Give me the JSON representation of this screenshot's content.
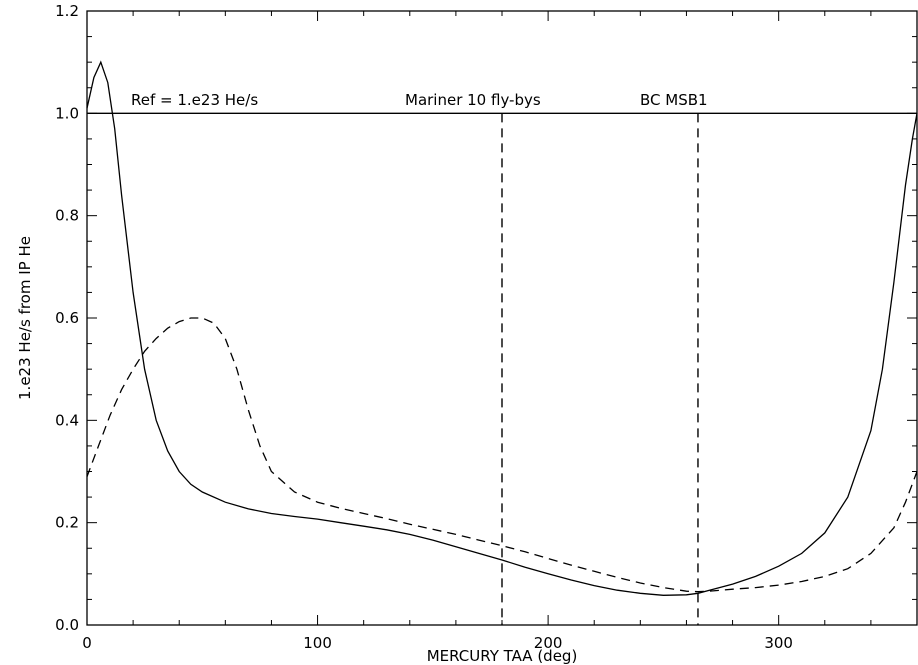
{
  "chart_data": {
    "type": "line",
    "title": "",
    "xlabel": "MERCURY TAA (deg)",
    "ylabel": "1.e23 He/s from IP He",
    "xlim": [
      0,
      360
    ],
    "ylim": [
      0,
      1.2
    ],
    "x_ticks": [
      0,
      100,
      200,
      300
    ],
    "x_tick_labels": [
      "0",
      "100",
      "200",
      "300"
    ],
    "y_ticks": [
      0.0,
      0.2,
      0.4,
      0.6,
      0.8,
      1.0,
      1.2
    ],
    "y_tick_labels": [
      "0.0",
      "0.2",
      "0.4",
      "0.6",
      "0.8",
      "1.0",
      "1.2"
    ],
    "grid": false,
    "annotations": {
      "ref": "Ref = 1.e23 He/s",
      "mariner": "Mariner 10 fly-bys",
      "bc": "BC MSB1"
    },
    "reference_line": {
      "y": 1.0
    },
    "vertical_markers": [
      {
        "x": 180,
        "y_top": 1.0
      },
      {
        "x": 265,
        "y_top": 1.0
      }
    ],
    "series": [
      {
        "style": "solid",
        "x": [
          0,
          3,
          6,
          9,
          12,
          15,
          20,
          25,
          30,
          35,
          40,
          45,
          50,
          60,
          70,
          80,
          90,
          100,
          110,
          120,
          130,
          140,
          150,
          160,
          170,
          180,
          190,
          200,
          210,
          220,
          230,
          240,
          250,
          260,
          265,
          270,
          280,
          290,
          300,
          310,
          320,
          330,
          340,
          345,
          350,
          355,
          358,
          360
        ],
        "y": [
          1.01,
          1.07,
          1.1,
          1.06,
          0.97,
          0.84,
          0.65,
          0.5,
          0.4,
          0.34,
          0.3,
          0.275,
          0.26,
          0.24,
          0.227,
          0.218,
          0.212,
          0.207,
          0.2,
          0.193,
          0.186,
          0.177,
          0.166,
          0.153,
          0.14,
          0.127,
          0.113,
          0.1,
          0.088,
          0.077,
          0.068,
          0.062,
          0.058,
          0.059,
          0.062,
          0.068,
          0.08,
          0.095,
          0.115,
          0.14,
          0.18,
          0.25,
          0.38,
          0.5,
          0.67,
          0.86,
          0.95,
          1.0
        ]
      },
      {
        "style": "dashed",
        "x": [
          0,
          5,
          10,
          15,
          20,
          25,
          30,
          35,
          40,
          45,
          50,
          55,
          60,
          65,
          70,
          75,
          80,
          90,
          100,
          110,
          120,
          130,
          140,
          150,
          160,
          170,
          180,
          190,
          200,
          210,
          220,
          230,
          240,
          250,
          260,
          265,
          270,
          280,
          290,
          300,
          310,
          320,
          330,
          340,
          350,
          355,
          360
        ],
        "y": [
          0.29,
          0.35,
          0.41,
          0.46,
          0.5,
          0.535,
          0.56,
          0.58,
          0.593,
          0.6,
          0.6,
          0.59,
          0.56,
          0.5,
          0.42,
          0.35,
          0.3,
          0.26,
          0.24,
          0.228,
          0.218,
          0.208,
          0.197,
          0.187,
          0.177,
          0.166,
          0.155,
          0.143,
          0.13,
          0.117,
          0.105,
          0.093,
          0.082,
          0.073,
          0.066,
          0.065,
          0.066,
          0.07,
          0.073,
          0.078,
          0.085,
          0.095,
          0.11,
          0.14,
          0.19,
          0.24,
          0.3
        ]
      }
    ]
  }
}
